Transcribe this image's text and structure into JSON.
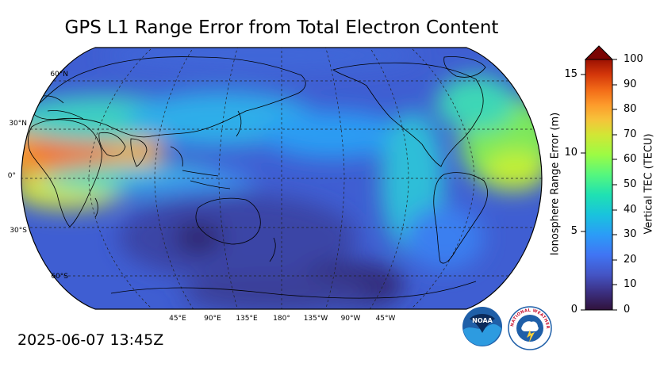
{
  "title": "GPS L1 Range Error from Total Electron Content",
  "timestamp": "2025-06-07 13:45Z",
  "map": {
    "projection": "robinson",
    "central_longitude": 180,
    "lat_labels": [
      "60°N",
      "30°N",
      "0°",
      "30°S",
      "60°S"
    ],
    "lon_labels": [
      "45°E",
      "90°E",
      "135°E",
      "180°",
      "135°W",
      "90°W",
      "45°W"
    ],
    "gridlines": "dashed",
    "features": [
      "coastlines",
      "country borders"
    ]
  },
  "colorbar": {
    "left_label": "Ionosphere Range Error (m)",
    "left_ticks": [
      "0",
      "5",
      "10",
      "15"
    ],
    "right_label": "Vertical TEC (TECU)",
    "right_ticks": [
      "0",
      "10",
      "20",
      "30",
      "40",
      "50",
      "60",
      "70",
      "80",
      "90",
      "100"
    ],
    "extend": "max",
    "colormap": "turbo",
    "colors": [
      "#30123b",
      "#3e3994",
      "#455ed3",
      "#3a84fb",
      "#24aaf2",
      "#15cdd2",
      "#26e9a9",
      "#5afb78",
      "#93fe48",
      "#c2ef34",
      "#e9d53a",
      "#fdb030",
      "#fb8022",
      "#eb5310",
      "#ce3004",
      "#a31201",
      "#7a0403"
    ]
  },
  "logos": [
    "NOAA",
    "NATIONAL WEATHER SERVICE"
  ]
}
